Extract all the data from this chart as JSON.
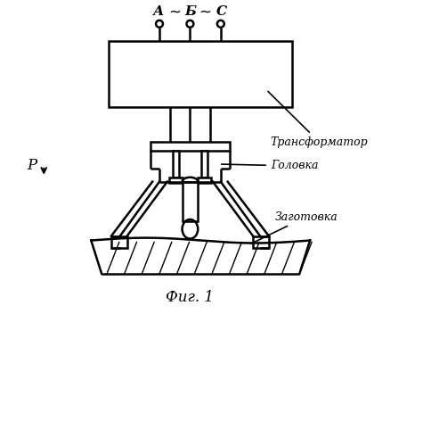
{
  "fig_label": "Фиг. 1",
  "label_transformer": "Трансформатор",
  "label_head": "Головка",
  "label_workpiece": "Заготовка",
  "label_A": "А",
  "label_B": "Б",
  "label_C": "С",
  "label_P": "Р",
  "tilde": "~",
  "background_color": "#ffffff",
  "line_color": "#000000",
  "lw": 1.8
}
